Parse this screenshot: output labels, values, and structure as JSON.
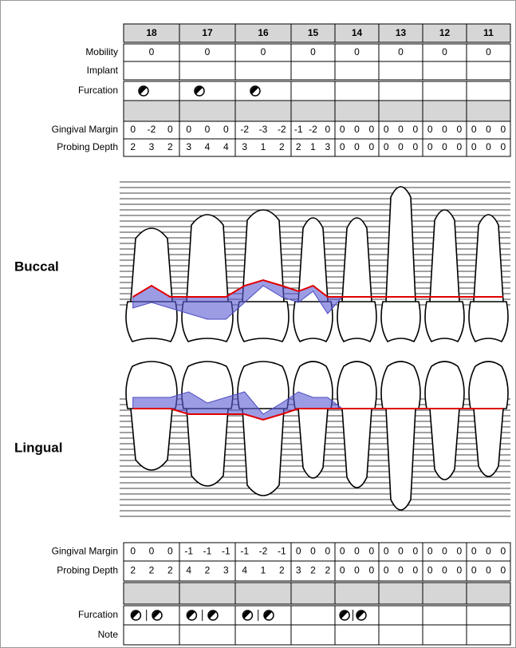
{
  "teeth": [
    18,
    17,
    16,
    15,
    14,
    13,
    12,
    11
  ],
  "buccal": {
    "label": "Buccal",
    "mobility": {
      "label": "Mobility",
      "values": [
        0,
        0,
        0,
        0,
        0,
        0,
        0,
        0
      ]
    },
    "implant": {
      "label": "Implant"
    },
    "furcation": {
      "label": "Furcation"
    },
    "gingival_margin": {
      "label": "Gingival Margin",
      "values": [
        [
          0,
          -2,
          0
        ],
        [
          0,
          0,
          0
        ],
        [
          -2,
          -3,
          -2
        ],
        [
          -1,
          -2,
          0
        ],
        [
          0,
          0,
          0
        ],
        [
          0,
          0,
          0
        ],
        [
          0,
          0,
          0
        ],
        [
          0,
          0,
          0
        ]
      ]
    },
    "probing_depth": {
      "label": "Probing Depth",
      "values": [
        [
          2,
          3,
          2
        ],
        [
          3,
          4,
          4
        ],
        [
          3,
          1,
          2
        ],
        [
          2,
          1,
          3
        ],
        [
          0,
          0,
          0
        ],
        [
          0,
          0,
          0
        ],
        [
          0,
          0,
          0
        ],
        [
          0,
          0,
          0
        ]
      ]
    }
  },
  "lingual": {
    "label": "Lingual",
    "gingival_margin": {
      "label": "Gingival Margin",
      "values": [
        [
          0,
          0,
          0
        ],
        [
          -1,
          -1,
          -1
        ],
        [
          -1,
          -2,
          -1
        ],
        [
          0,
          0,
          0
        ],
        [
          0,
          0,
          0
        ],
        [
          0,
          0,
          0
        ],
        [
          0,
          0,
          0
        ],
        [
          0,
          0,
          0
        ]
      ]
    },
    "probing_depth": {
      "label": "Probing Depth",
      "values": [
        [
          2,
          2,
          2
        ],
        [
          4,
          2,
          3
        ],
        [
          4,
          1,
          2
        ],
        [
          3,
          2,
          2
        ],
        [
          0,
          0,
          0
        ],
        [
          0,
          0,
          0
        ],
        [
          0,
          0,
          0
        ],
        [
          0,
          0,
          0
        ]
      ]
    },
    "furcation": {
      "label": "Furcation"
    },
    "note": {
      "label": "Note"
    }
  }
}
